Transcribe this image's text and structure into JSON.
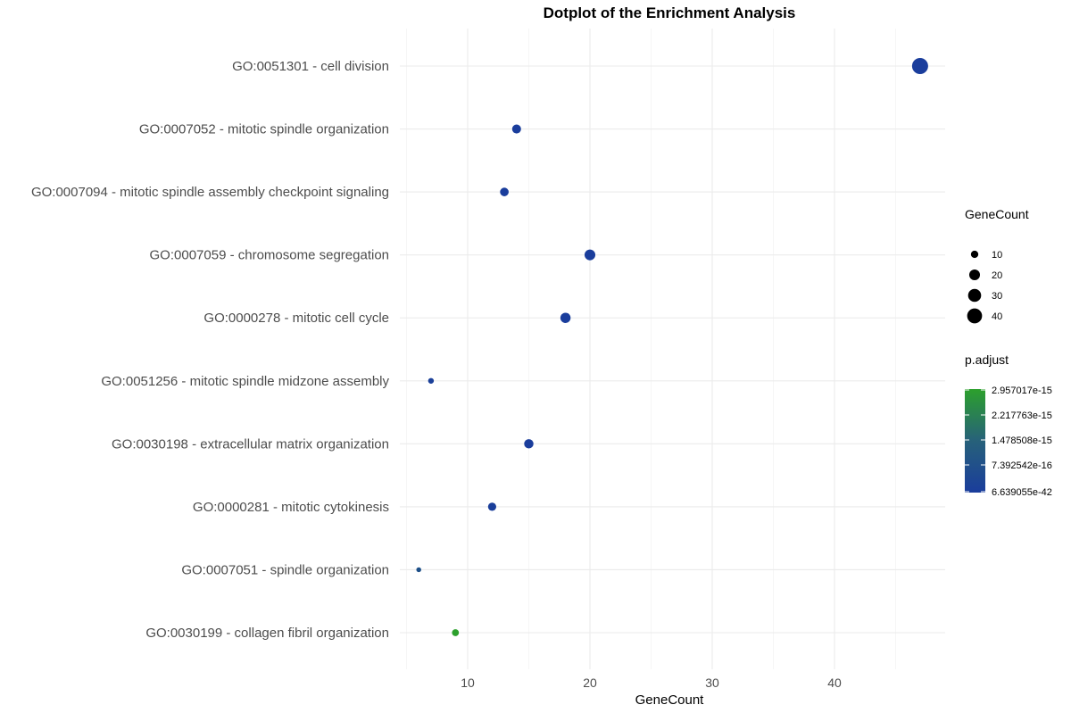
{
  "chart_data": {
    "type": "scatter",
    "title": "Dotplot of the Enrichment Analysis",
    "xlabel": "GeneCount",
    "ylabel": "",
    "xlim": [
      4.9,
      49
    ],
    "x_ticks": [
      10,
      20,
      30,
      40
    ],
    "grid": true,
    "categories": [
      "GO:0051301 - cell division",
      "GO:0007052 - mitotic spindle organization",
      "GO:0007094 - mitotic spindle assembly checkpoint signaling",
      "GO:0007059 - chromosome segregation",
      "GO:0000278 - mitotic cell cycle",
      "GO:0051256 - mitotic spindle midzone assembly",
      "GO:0030198 - extracellular matrix organization",
      "GO:0000281 - mitotic cytokinesis",
      "GO:0007051 - spindle organization",
      "GO:0030199 - collagen fibril organization"
    ],
    "x": [
      47,
      14,
      13,
      20,
      18,
      7,
      15,
      12,
      6,
      9
    ],
    "p_adjust": [
      6.6e-42,
      1e-20,
      2e-20,
      1e-25,
      1e-22,
      5e-17,
      1e-18,
      2e-17,
      4e-16,
      2.957017e-15
    ],
    "size_legend": {
      "title": "GeneCount",
      "values": [
        10,
        20,
        30,
        40
      ],
      "labels": [
        "10",
        "20",
        "30",
        "40"
      ]
    },
    "color_legend": {
      "title": "p.adjust",
      "labels": [
        "2.957017e-15",
        "2.217763e-15",
        "1.478508e-15",
        "7.392542e-16",
        "6.639055e-42"
      ],
      "low_color": "#1a3d9c",
      "high_color": "#2ca02c",
      "legend_placement": "right"
    }
  }
}
